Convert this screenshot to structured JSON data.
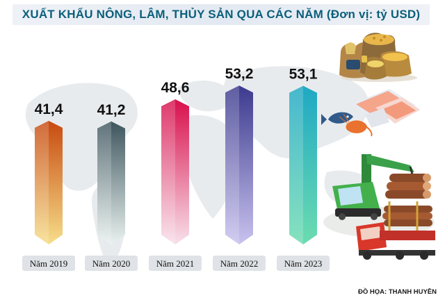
{
  "chart_data": {
    "type": "bar",
    "title": "XUẤT KHẨU NÔNG, LÂM, THỦY SẢN QUA CÁC NĂM (Đơn vị: tỷ USD)",
    "categories": [
      "Năm 2019",
      "Năm 2020",
      "Năm 2021",
      "Năm 2022",
      "Năm 2023"
    ],
    "values": [
      41.4,
      41.2,
      48.6,
      53.2,
      53.1
    ],
    "value_labels": [
      "41,4",
      "41,2",
      "48,6",
      "53,2",
      "53,1"
    ],
    "ylim": [
      0,
      55
    ],
    "grid": false,
    "legend": "none",
    "colors": [
      {
        "top": "#c84a10",
        "bottom": "#f6de8a"
      },
      {
        "top": "#3e555e",
        "bottom": "#e9f2ef"
      },
      {
        "top": "#d80f4c",
        "bottom": "#f8e0ea"
      },
      {
        "top": "#3c3a8e",
        "bottom": "#c8c2ee"
      },
      {
        "top": "#1fa8c4",
        "bottom": "#6cdcb0"
      }
    ]
  },
  "credit": "ĐỒ HỌA: THANH HUYỀN",
  "illustrations": [
    "grain-sacks-icon",
    "seafood-icon",
    "timber-crane-icon"
  ]
}
